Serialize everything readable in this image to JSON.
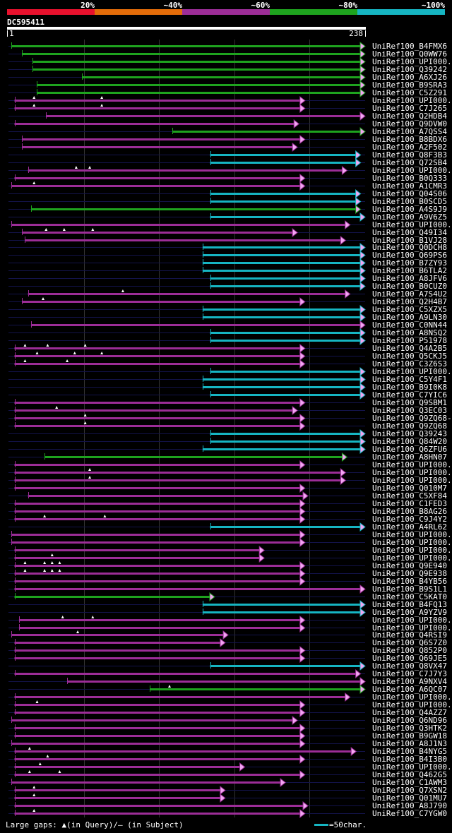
{
  "chart_data": {
    "type": "alignment-overview",
    "query_name": "DC595411",
    "query_start": "1",
    "query_end": "238",
    "query_length": 238,
    "identity_scale": [
      {
        "label": "20%",
        "color": "#e8112d"
      },
      {
        "label": "~40%",
        "color": "#e36c09"
      },
      {
        "label": "~60%",
        "color": "#9c2d97"
      },
      {
        "label": "~80%",
        "color": "#1ea31e"
      },
      {
        "label": "~100%",
        "color": "#16b5c2"
      }
    ],
    "legend_gaps": "Large gaps: ▲(in Query)/— (in Subject)",
    "legend_scale": "=50char.",
    "hits": [
      {
        "name": "UniRef100_B4FMX6",
        "start": 3,
        "end": 238,
        "color": "green",
        "arrow": true,
        "gaps": [],
        "tris": []
      },
      {
        "name": "UniRef100_Q0WW76",
        "start": 10,
        "end": 238,
        "color": "green",
        "arrow": true,
        "gaps": [],
        "tris": []
      },
      {
        "name": "UniRef100_UPI000..",
        "start": 17,
        "end": 238,
        "color": "green",
        "arrow": true,
        "gaps": [],
        "tris": []
      },
      {
        "name": "UniRef100_Q39242",
        "start": 17,
        "end": 238,
        "color": "green",
        "arrow": true,
        "gaps": [],
        "tris": []
      },
      {
        "name": "UniRef100_A6XJ26",
        "start": 50,
        "end": 238,
        "color": "green",
        "arrow": true,
        "gaps": [],
        "tris": []
      },
      {
        "name": "UniRef100_B9SRA3",
        "start": 20,
        "end": 238,
        "color": "green",
        "arrow": true,
        "gaps": [],
        "tris": []
      },
      {
        "name": "UniRef100_C5Z291",
        "start": 20,
        "end": 238,
        "color": "green",
        "arrow": true,
        "gaps": [],
        "tris": []
      },
      {
        "name": "UniRef100_UPI000..",
        "start": 5,
        "end": 198,
        "color": "purple",
        "arrow": true,
        "gaps": [],
        "tris": [
          18,
          63
        ]
      },
      {
        "name": "UniRef100_C7J265",
        "start": 5,
        "end": 198,
        "color": "purple",
        "arrow": true,
        "gaps": [],
        "tris": [
          18,
          63
        ]
      },
      {
        "name": "UniRef100_Q2HDB4",
        "start": 26,
        "end": 238,
        "color": "purple",
        "arrow": true,
        "gaps": [],
        "tris": []
      },
      {
        "name": "UniRef100_Q9DVW0",
        "start": 5,
        "end": 194,
        "color": "purple",
        "arrow": true,
        "gaps": [],
        "tris": []
      },
      {
        "name": "UniRef100_A7QSS4",
        "start": 110,
        "end": 238,
        "color": "green",
        "arrow": true,
        "gaps": [],
        "tris": []
      },
      {
        "name": "UniRef100_B8BDX6",
        "start": 10,
        "end": 198,
        "color": "purple",
        "arrow": true,
        "gaps": [],
        "tris": []
      },
      {
        "name": "UniRef100_A2F502",
        "start": 10,
        "end": 193,
        "color": "purple",
        "arrow": true,
        "gaps": [],
        "tris": []
      },
      {
        "name": "UniRef100_Q8F3B3",
        "start": 135,
        "end": 235,
        "color": "cyan",
        "arrow": true,
        "gaps": [],
        "tris": []
      },
      {
        "name": "UniRef100_Q72SB4",
        "start": 135,
        "end": 235,
        "color": "cyan",
        "arrow": true,
        "gaps": [],
        "tris": []
      },
      {
        "name": "UniRef100_UPI000..",
        "start": 14,
        "end": 226,
        "color": "purple",
        "arrow": true,
        "gaps": [],
        "tris": [
          46,
          55
        ]
      },
      {
        "name": "UniRef100_B0Q333",
        "start": 5,
        "end": 198,
        "color": "purple",
        "arrow": true,
        "gaps": [],
        "tris": []
      },
      {
        "name": "UniRef100_A1CMR3",
        "start": 3,
        "end": 198,
        "color": "purple",
        "arrow": true,
        "gaps": [],
        "tris": [
          18
        ]
      },
      {
        "name": "UniRef100_Q04S06",
        "start": 135,
        "end": 235,
        "color": "cyan",
        "arrow": true,
        "gaps": [],
        "tris": []
      },
      {
        "name": "UniRef100_B0SCD5",
        "start": 135,
        "end": 235,
        "color": "cyan",
        "arrow": true,
        "gaps": [],
        "tris": []
      },
      {
        "name": "UniRef100_A4S9J9",
        "start": 16,
        "end": 235,
        "color": "green",
        "arrow": true,
        "gaps": [],
        "tris": []
      },
      {
        "name": "UniRef100_A9V6Z5",
        "start": 135,
        "end": 238,
        "color": "cyan",
        "arrow": true,
        "gaps": [],
        "tris": []
      },
      {
        "name": "UniRef100_UPI000..",
        "start": 3,
        "end": 228,
        "color": "purple",
        "arrow": true,
        "gaps": [],
        "tris": []
      },
      {
        "name": "UniRef100_Q49I34",
        "start": 10,
        "end": 193,
        "color": "purple",
        "arrow": true,
        "gaps": [],
        "tris": [
          26,
          38,
          57
        ]
      },
      {
        "name": "UniRef100_B1VJ28",
        "start": 12,
        "end": 225,
        "color": "purple",
        "arrow": true,
        "gaps": [],
        "tris": []
      },
      {
        "name": "UniRef100_Q0DCH8",
        "start": 130,
        "end": 238,
        "color": "cyan",
        "arrow": true,
        "gaps": [],
        "tris": []
      },
      {
        "name": "UniRef100_Q69PS6",
        "start": 130,
        "end": 238,
        "color": "cyan",
        "arrow": true,
        "gaps": [],
        "tris": []
      },
      {
        "name": "UniRef100_B7ZY93",
        "start": 130,
        "end": 238,
        "color": "cyan",
        "arrow": true,
        "gaps": [],
        "tris": []
      },
      {
        "name": "UniRef100_B6TLA2",
        "start": 130,
        "end": 238,
        "color": "cyan",
        "arrow": true,
        "gaps": [],
        "tris": []
      },
      {
        "name": "UniRef100_A8JFV6",
        "start": 135,
        "end": 238,
        "color": "cyan",
        "arrow": true,
        "gaps": [],
        "tris": []
      },
      {
        "name": "UniRef100_B0CUZ0",
        "start": 135,
        "end": 238,
        "color": "cyan",
        "arrow": true,
        "gaps": [],
        "tris": []
      },
      {
        "name": "UniRef100_A7S4U2",
        "start": 14,
        "end": 228,
        "color": "purple",
        "arrow": true,
        "gaps": [],
        "tris": [
          77
        ]
      },
      {
        "name": "UniRef100_Q2H4B7",
        "start": 10,
        "end": 198,
        "color": "purple",
        "arrow": true,
        "gaps": [],
        "tris": [
          24
        ]
      },
      {
        "name": "UniRef100_C5XZX5",
        "start": 130,
        "end": 238,
        "color": "cyan",
        "arrow": true,
        "gaps": [],
        "tris": []
      },
      {
        "name": "UniRef100_A9LN30",
        "start": 130,
        "end": 238,
        "color": "cyan",
        "arrow": true,
        "gaps": [],
        "tris": []
      },
      {
        "name": "UniRef100_C0NN44",
        "start": 16,
        "end": 238,
        "color": "purple",
        "arrow": true,
        "gaps": [],
        "tris": []
      },
      {
        "name": "UniRef100_A8NSQ2",
        "start": 135,
        "end": 238,
        "color": "cyan",
        "arrow": true,
        "gaps": [],
        "tris": []
      },
      {
        "name": "UniRef100_P51978",
        "start": 135,
        "end": 238,
        "color": "cyan",
        "arrow": true,
        "gaps": [],
        "tris": []
      },
      {
        "name": "UniRef100_Q4A2B5",
        "start": 5,
        "end": 198,
        "color": "purple",
        "arrow": true,
        "gaps": [],
        "tris": [
          12,
          27,
          52
        ]
      },
      {
        "name": "UniRef100_Q5CKJ5",
        "start": 5,
        "end": 198,
        "color": "purple",
        "arrow": true,
        "gaps": [],
        "tris": [
          20,
          45,
          63
        ]
      },
      {
        "name": "UniRef100_C3Z6S3",
        "start": 5,
        "end": 198,
        "color": "purple",
        "arrow": true,
        "gaps": [],
        "tris": [
          12,
          40
        ]
      },
      {
        "name": "UniRef100_UPI000..",
        "start": 135,
        "end": 238,
        "color": "cyan",
        "arrow": true,
        "gaps": [],
        "tris": []
      },
      {
        "name": "UniRef100_C5Y4F1",
        "start": 130,
        "end": 238,
        "color": "cyan",
        "arrow": true,
        "gaps": [],
        "tris": []
      },
      {
        "name": "UniRef100_B9I0K8",
        "start": 130,
        "end": 238,
        "color": "cyan",
        "arrow": true,
        "gaps": [],
        "tris": []
      },
      {
        "name": "UniRef100_C7YIC6",
        "start": 135,
        "end": 238,
        "color": "cyan",
        "arrow": true,
        "gaps": [],
        "tris": []
      },
      {
        "name": "UniRef100_Q9SBM1",
        "start": 5,
        "end": 198,
        "color": "purple",
        "arrow": true,
        "gaps": [],
        "tris": []
      },
      {
        "name": "UniRef100_Q3EC03",
        "start": 5,
        "end": 193,
        "color": "purple",
        "arrow": true,
        "gaps": [],
        "tris": [
          33
        ]
      },
      {
        "name": "UniRef100_Q9ZQ68-2",
        "start": 5,
        "end": 198,
        "color": "purple",
        "arrow": true,
        "gaps": [],
        "tris": [
          52
        ]
      },
      {
        "name": "UniRef100_Q9ZQ68",
        "start": 5,
        "end": 198,
        "color": "purple",
        "arrow": true,
        "gaps": [],
        "tris": [
          52
        ]
      },
      {
        "name": "UniRef100_Q39243",
        "start": 135,
        "end": 238,
        "color": "cyan",
        "arrow": true,
        "gaps": [],
        "tris": []
      },
      {
        "name": "UniRef100_Q84W20",
        "start": 135,
        "end": 238,
        "color": "cyan",
        "arrow": true,
        "gaps": [],
        "tris": []
      },
      {
        "name": "UniRef100_Q6ZFU6",
        "start": 130,
        "end": 238,
        "color": "cyan",
        "arrow": true,
        "gaps": [],
        "tris": []
      },
      {
        "name": "UniRef100_A8HN07",
        "start": 25,
        "end": 226,
        "color": "green",
        "arrow": true,
        "gaps": [],
        "tris": []
      },
      {
        "name": "UniRef100_UPI000..",
        "start": 5,
        "end": 198,
        "color": "purple",
        "arrow": true,
        "gaps": [],
        "tris": []
      },
      {
        "name": "UniRef100_UPI000..",
        "start": 5,
        "end": 225,
        "color": "purple",
        "arrow": true,
        "gaps": [],
        "tris": [
          55
        ]
      },
      {
        "name": "UniRef100_UPI000..",
        "start": 5,
        "end": 225,
        "color": "purple",
        "arrow": true,
        "gaps": [],
        "tris": [
          55
        ]
      },
      {
        "name": "UniRef100_Q010M7",
        "start": 5,
        "end": 198,
        "color": "purple",
        "arrow": true,
        "gaps": [],
        "tris": []
      },
      {
        "name": "UniRef100_C5XF84",
        "start": 14,
        "end": 200,
        "color": "purple",
        "arrow": true,
        "gaps": [],
        "tris": []
      },
      {
        "name": "UniRef100_C1FED3",
        "start": 5,
        "end": 198,
        "color": "purple",
        "arrow": true,
        "gaps": [],
        "tris": []
      },
      {
        "name": "UniRef100_B8AG26",
        "start": 5,
        "end": 198,
        "color": "purple",
        "arrow": true,
        "gaps": [],
        "tris": []
      },
      {
        "name": "UniRef100_C9J4Y2",
        "start": 5,
        "end": 198,
        "color": "purple",
        "arrow": true,
        "gaps": [],
        "tris": [
          25,
          65
        ]
      },
      {
        "name": "UniRef100_A4RL62",
        "start": 135,
        "end": 238,
        "color": "cyan",
        "arrow": true,
        "gaps": [],
        "tris": []
      },
      {
        "name": "UniRef100_UPI000..",
        "start": 3,
        "end": 198,
        "color": "purple",
        "arrow": true,
        "gaps": [],
        "tris": []
      },
      {
        "name": "UniRef100_UPI000..",
        "start": 3,
        "end": 198,
        "color": "purple",
        "arrow": true,
        "gaps": [],
        "tris": []
      },
      {
        "name": "UniRef100_UPI000..",
        "start": 5,
        "end": 171,
        "color": "purple",
        "arrow": true,
        "gaps": [],
        "tris": []
      },
      {
        "name": "UniRef100_UPI000..",
        "start": 5,
        "end": 171,
        "color": "purple",
        "arrow": true,
        "gaps": [],
        "tris": [
          30
        ]
      },
      {
        "name": "UniRef100_Q9E940",
        "start": 5,
        "end": 198,
        "color": "purple",
        "arrow": true,
        "gaps": [],
        "tris": [
          12,
          25,
          30,
          35
        ]
      },
      {
        "name": "UniRef100_Q9E938",
        "start": 5,
        "end": 198,
        "color": "purple",
        "arrow": true,
        "gaps": [],
        "tris": [
          12,
          25,
          30,
          35
        ]
      },
      {
        "name": "UniRef100_B4YB56",
        "start": 5,
        "end": 198,
        "color": "purple",
        "arrow": true,
        "gaps": [],
        "tris": []
      },
      {
        "name": "UniRef100_B9S1L1",
        "start": 5,
        "end": 238,
        "color": "purple",
        "arrow": true,
        "gaps": [],
        "tris": []
      },
      {
        "name": "UniRef100_C5KAT0",
        "start": 5,
        "end": 138,
        "color": "green",
        "arrow": true,
        "gaps": [],
        "tris": []
      },
      {
        "name": "UniRef100_B4FQ13",
        "start": 130,
        "end": 238,
        "color": "cyan",
        "arrow": true,
        "gaps": [],
        "tris": []
      },
      {
        "name": "UniRef100_A9YZV9",
        "start": 130,
        "end": 238,
        "color": "cyan",
        "arrow": true,
        "gaps": [],
        "tris": []
      },
      {
        "name": "UniRef100_UPI000..",
        "start": 8,
        "end": 198,
        "color": "purple",
        "arrow": true,
        "gaps": [],
        "tris": [
          37,
          57
        ]
      },
      {
        "name": "UniRef100_UPI000..",
        "start": 8,
        "end": 198,
        "color": "purple",
        "arrow": true,
        "gaps": [],
        "tris": []
      },
      {
        "name": "UniRef100_Q4RSI9",
        "start": 3,
        "end": 147,
        "color": "purple",
        "arrow": true,
        "gaps": [],
        "tris": [
          47
        ]
      },
      {
        "name": "UniRef100_Q6S7Z0",
        "start": 5,
        "end": 145,
        "color": "purple",
        "arrow": true,
        "gaps": [],
        "tris": []
      },
      {
        "name": "UniRef100_Q852P0",
        "start": 5,
        "end": 198,
        "color": "purple",
        "arrow": true,
        "gaps": [],
        "tris": []
      },
      {
        "name": "UniRef100_Q69JE5",
        "start": 5,
        "end": 198,
        "color": "purple",
        "arrow": true,
        "gaps": [],
        "tris": []
      },
      {
        "name": "UniRef100_Q8VX47",
        "start": 135,
        "end": 238,
        "color": "cyan",
        "arrow": true,
        "gaps": [],
        "tris": []
      },
      {
        "name": "UniRef100_C7J7Y3",
        "start": 5,
        "end": 235,
        "color": "purple",
        "arrow": true,
        "gaps": [],
        "tris": []
      },
      {
        "name": "UniRef100_A9NXV4",
        "start": 40,
        "end": 238,
        "color": "purple",
        "arrow": true,
        "gaps": [],
        "tris": []
      },
      {
        "name": "UniRef100_A6QC07",
        "start": 95,
        "end": 238,
        "color": "green",
        "arrow": true,
        "gaps": [],
        "tris": [
          108
        ]
      },
      {
        "name": "UniRef100_UPI000..",
        "start": 5,
        "end": 228,
        "color": "purple",
        "arrow": true,
        "gaps": [],
        "tris": []
      },
      {
        "name": "UniRef100_UPI000..",
        "start": 5,
        "end": 198,
        "color": "purple",
        "arrow": true,
        "gaps": [],
        "tris": [
          20
        ]
      },
      {
        "name": "UniRef100_Q4AZZ7",
        "start": 5,
        "end": 198,
        "color": "purple",
        "arrow": true,
        "gaps": [],
        "tris": []
      },
      {
        "name": "UniRef100_Q6ND96",
        "start": 3,
        "end": 193,
        "color": "purple",
        "arrow": true,
        "gaps": [],
        "tris": []
      },
      {
        "name": "UniRef100_Q3HTK2",
        "start": 5,
        "end": 198,
        "color": "purple",
        "arrow": true,
        "gaps": [],
        "tris": []
      },
      {
        "name": "UniRef100_B9GW18",
        "start": 5,
        "end": 198,
        "color": "purple",
        "arrow": true,
        "gaps": [],
        "tris": []
      },
      {
        "name": "UniRef100_A8J1N3",
        "start": 3,
        "end": 198,
        "color": "purple",
        "arrow": true,
        "gaps": [],
        "tris": []
      },
      {
        "name": "UniRef100_B4NYG5",
        "start": 5,
        "end": 232,
        "color": "purple",
        "arrow": true,
        "gaps": [],
        "tris": [
          15
        ]
      },
      {
        "name": "UniRef100_B4I3B0",
        "start": 5,
        "end": 198,
        "color": "purple",
        "arrow": true,
        "gaps": [],
        "tris": [
          27
        ]
      },
      {
        "name": "UniRef100_UPI000..",
        "start": 5,
        "end": 158,
        "color": "purple",
        "arrow": true,
        "gaps": [],
        "tris": [
          22
        ]
      },
      {
        "name": "UniRef100_Q462G5",
        "start": 5,
        "end": 198,
        "color": "purple",
        "arrow": true,
        "gaps": [],
        "tris": [
          15,
          35
        ]
      },
      {
        "name": "UniRef100_C1AWM3",
        "start": 3,
        "end": 185,
        "color": "purple",
        "arrow": true,
        "gaps": [],
        "tris": []
      },
      {
        "name": "UniRef100_Q7XSN2",
        "start": 5,
        "end": 145,
        "color": "purple",
        "arrow": true,
        "gaps": [],
        "tris": [
          18
        ]
      },
      {
        "name": "UniRef100_Q01MU7",
        "start": 5,
        "end": 145,
        "color": "purple",
        "arrow": true,
        "gaps": [],
        "tris": [
          18
        ]
      },
      {
        "name": "UniRef100_A8J790",
        "start": 5,
        "end": 200,
        "color": "purple",
        "arrow": true,
        "gaps": [],
        "tris": []
      },
      {
        "name": "UniRef100_C7YGW0",
        "start": 5,
        "end": 198,
        "color": "purple",
        "arrow": true,
        "gaps": [],
        "tris": [
          18
        ]
      }
    ]
  }
}
